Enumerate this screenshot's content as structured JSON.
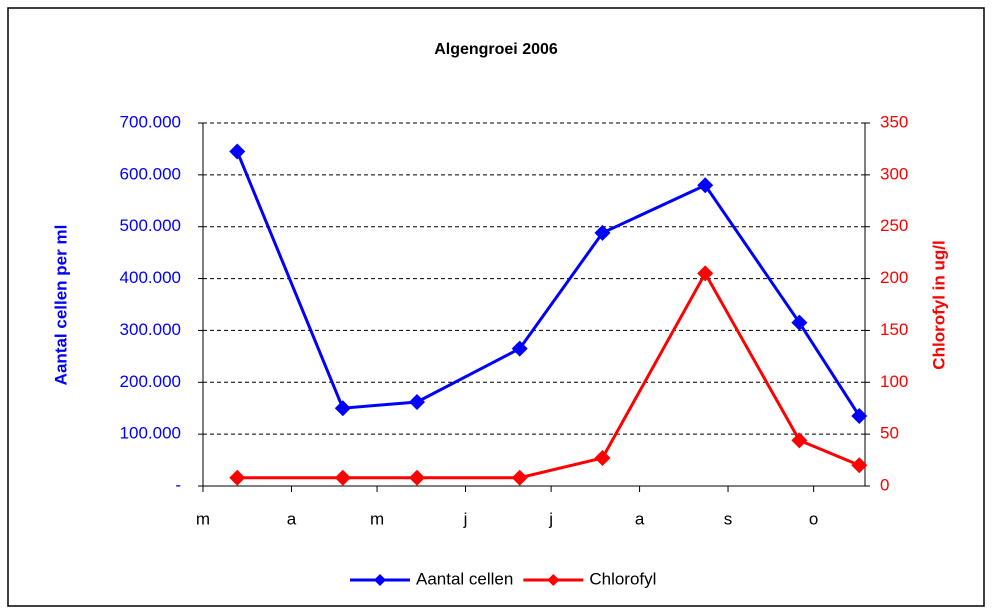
{
  "chart_data": {
    "type": "line",
    "title": "Algengroei 2006",
    "y_label": "Aantal cellen per ml",
    "y2_label": "Chlorofyl in ug/l",
    "x": [
      12,
      49,
      75,
      111,
      140,
      176,
      209,
      230
    ],
    "xlim": [
      0,
      232
    ],
    "xticks": [
      {
        "value": 0,
        "label": "m"
      },
      {
        "value": 31,
        "label": "a"
      },
      {
        "value": 61,
        "label": "m"
      },
      {
        "value": 92,
        "label": "j"
      },
      {
        "value": 122,
        "label": "j"
      },
      {
        "value": 153,
        "label": "a"
      },
      {
        "value": 184,
        "label": "s"
      },
      {
        "value": 214,
        "label": "o"
      }
    ],
    "ylim": [
      0,
      700000
    ],
    "yticks": [
      {
        "value": 0,
        "label": "-"
      },
      {
        "value": 100000,
        "label": "100.000"
      },
      {
        "value": 200000,
        "label": "200.000"
      },
      {
        "value": 300000,
        "label": "300.000"
      },
      {
        "value": 400000,
        "label": "400.000"
      },
      {
        "value": 500000,
        "label": "500.000"
      },
      {
        "value": 600000,
        "label": "600.000"
      },
      {
        "value": 700000,
        "label": "700.000"
      }
    ],
    "y2lim": [
      0,
      350
    ],
    "y2ticks": [
      0,
      50,
      100,
      150,
      200,
      250,
      300,
      350
    ],
    "grid": true,
    "legend": "bottom",
    "series": [
      {
        "name": "Aantal cellen",
        "color": "#0000ff",
        "values": [
          645000,
          150000,
          162000,
          265000,
          488000,
          580000,
          315000,
          135000
        ]
      },
      {
        "name": "Chlorofyl",
        "color": "#ff0000",
        "axis": "y2",
        "values": [
          8,
          8,
          8,
          8,
          27,
          205,
          44,
          20
        ]
      }
    ]
  }
}
